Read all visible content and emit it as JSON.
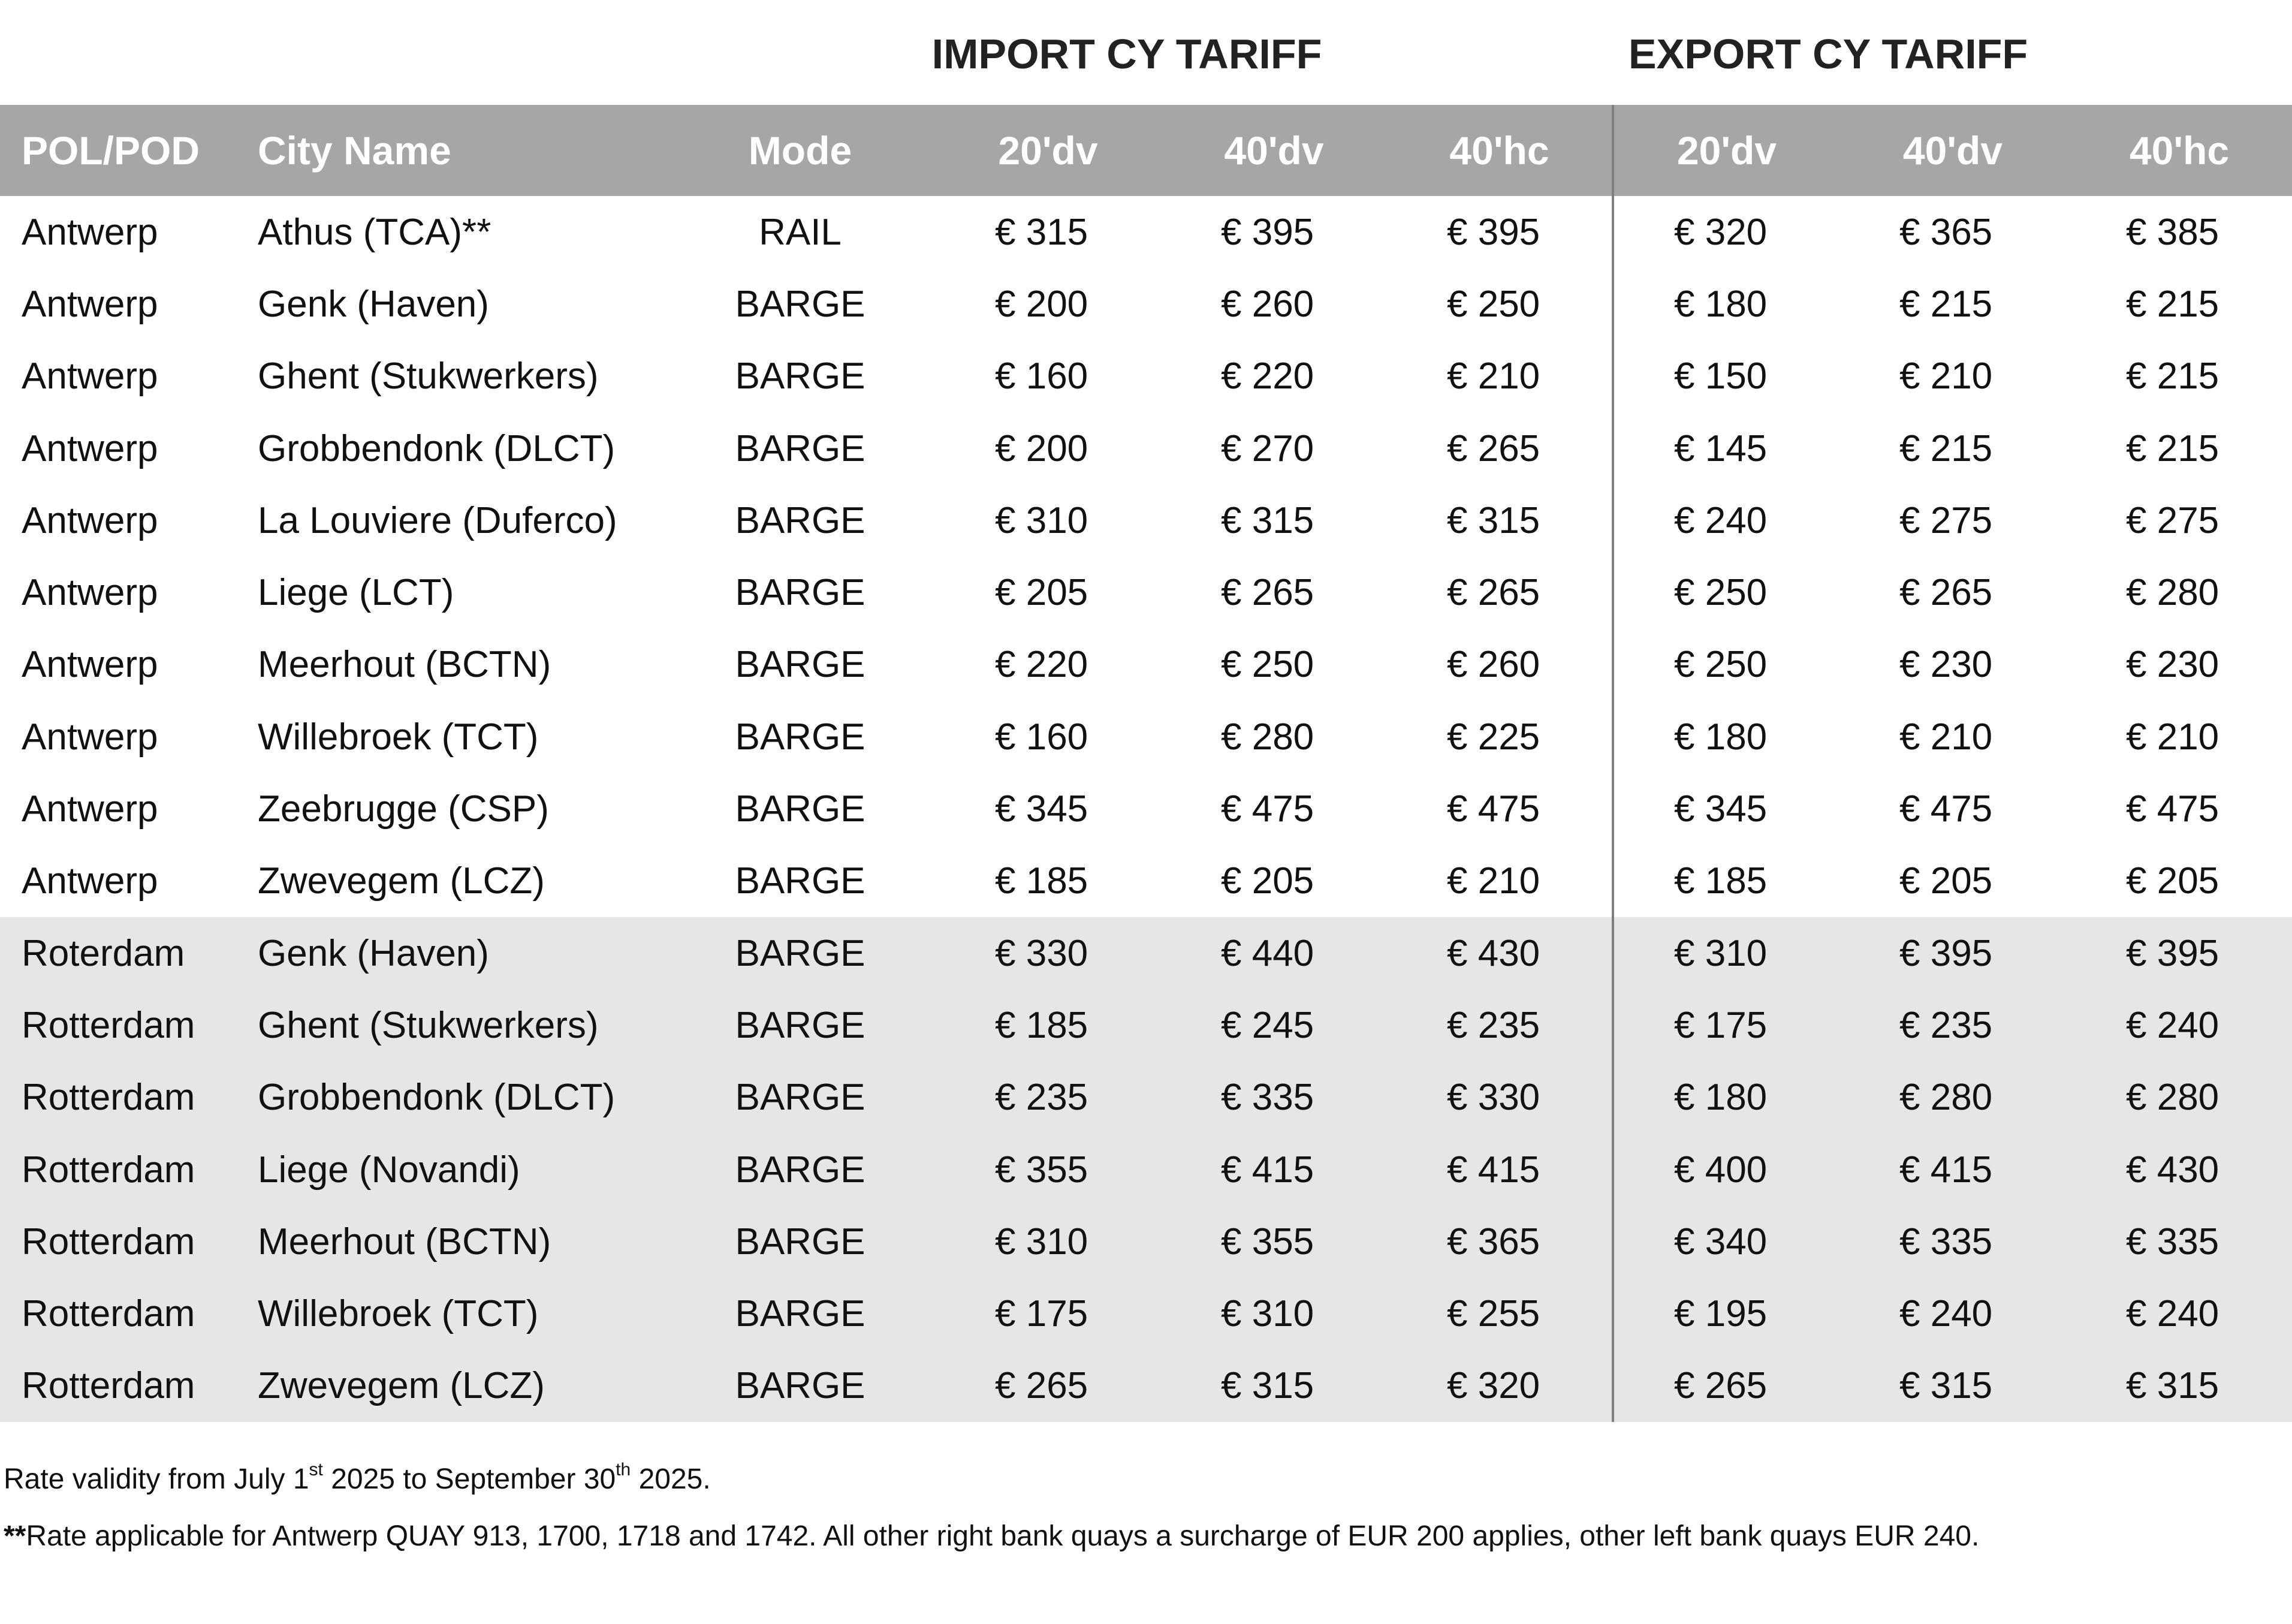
{
  "titles": {
    "import": "IMPORT CY TARIFF",
    "export": "EXPORT CY TARIFF"
  },
  "columns": {
    "pol": "POL/POD",
    "city": "City Name",
    "mode": "Mode",
    "import": [
      "20'dv",
      "40'dv",
      "40'hc"
    ],
    "export": [
      "20'dv",
      "40'dv",
      "40'hc"
    ]
  },
  "rows": [
    {
      "pol": "Antwerp",
      "city": "Athus (TCA)**",
      "mode": "RAIL",
      "imp": [
        "€ 315",
        "€ 395",
        "€ 395"
      ],
      "exp": [
        "€ 320",
        "€ 365",
        "€ 385"
      ]
    },
    {
      "pol": "Antwerp",
      "city": "Genk (Haven)",
      "mode": "BARGE",
      "imp": [
        "€ 200",
        "€ 260",
        "€ 250"
      ],
      "exp": [
        "€ 180",
        "€ 215",
        "€ 215"
      ]
    },
    {
      "pol": "Antwerp",
      "city": "Ghent (Stukwerkers)",
      "mode": "BARGE",
      "imp": [
        "€ 160",
        "€ 220",
        "€ 210"
      ],
      "exp": [
        "€ 150",
        "€ 210",
        "€ 215"
      ]
    },
    {
      "pol": "Antwerp",
      "city": "Grobbendonk (DLCT)",
      "mode": "BARGE",
      "imp": [
        "€ 200",
        "€ 270",
        "€ 265"
      ],
      "exp": [
        "€ 145",
        "€ 215",
        "€ 215"
      ]
    },
    {
      "pol": "Antwerp",
      "city": "La Louviere (Duferco)",
      "mode": "BARGE",
      "imp": [
        "€ 310",
        "€ 315",
        "€ 315"
      ],
      "exp": [
        "€ 240",
        "€ 275",
        "€ 275"
      ]
    },
    {
      "pol": "Antwerp",
      "city": "Liege (LCT)",
      "mode": "BARGE",
      "imp": [
        "€ 205",
        "€ 265",
        "€ 265"
      ],
      "exp": [
        "€ 250",
        "€ 265",
        "€ 280"
      ]
    },
    {
      "pol": "Antwerp",
      "city": "Meerhout (BCTN)",
      "mode": "BARGE",
      "imp": [
        "€ 220",
        "€ 250",
        "€ 260"
      ],
      "exp": [
        "€ 250",
        "€ 230",
        "€ 230"
      ]
    },
    {
      "pol": "Antwerp",
      "city": "Willebroek (TCT)",
      "mode": "BARGE",
      "imp": [
        "€ 160",
        "€ 280",
        "€ 225"
      ],
      "exp": [
        "€ 180",
        "€ 210",
        "€ 210"
      ]
    },
    {
      "pol": "Antwerp",
      "city": "Zeebrugge (CSP)",
      "mode": "BARGE",
      "imp": [
        "€ 345",
        "€ 475",
        "€ 475"
      ],
      "exp": [
        "€ 345",
        "€ 475",
        "€ 475"
      ]
    },
    {
      "pol": "Antwerp",
      "city": "Zwevegem (LCZ)",
      "mode": "BARGE",
      "imp": [
        "€ 185",
        "€ 205",
        "€ 210"
      ],
      "exp": [
        "€ 185",
        "€ 205",
        "€ 205"
      ]
    },
    {
      "pol": "Roterdam",
      "city": "Genk (Haven)",
      "mode": "BARGE",
      "imp": [
        "€ 330",
        "€ 440",
        "€ 430"
      ],
      "exp": [
        "€ 310",
        "€ 395",
        "€ 395"
      ]
    },
    {
      "pol": "Rotterdam",
      "city": "Ghent (Stukwerkers)",
      "mode": "BARGE",
      "imp": [
        "€ 185",
        "€ 245",
        "€ 235"
      ],
      "exp": [
        "€ 175",
        "€ 235",
        "€ 240"
      ]
    },
    {
      "pol": "Rotterdam",
      "city": "Grobbendonk (DLCT)",
      "mode": "BARGE",
      "imp": [
        "€ 235",
        "€ 335",
        "€ 330"
      ],
      "exp": [
        "€ 180",
        "€ 280",
        "€ 280"
      ]
    },
    {
      "pol": "Rotterdam",
      "city": "Liege (Novandi)",
      "mode": "BARGE",
      "imp": [
        "€ 355",
        "€ 415",
        "€ 415"
      ],
      "exp": [
        "€ 400",
        "€ 415",
        "€ 430"
      ]
    },
    {
      "pol": "Rotterdam",
      "city": "Meerhout (BCTN)",
      "mode": "BARGE",
      "imp": [
        "€ 310",
        "€ 355",
        "€ 365"
      ],
      "exp": [
        "€ 340",
        "€ 335",
        "€ 335"
      ]
    },
    {
      "pol": "Rotterdam",
      "city": "Willebroek (TCT)",
      "mode": "BARGE",
      "imp": [
        "€ 175",
        "€ 310",
        "€ 255"
      ],
      "exp": [
        "€ 195",
        "€ 240",
        "€ 240"
      ]
    },
    {
      "pol": "Rotterdam",
      "city": "Zwevegem (LCZ)",
      "mode": "BARGE",
      "imp": [
        "€ 265",
        "€ 315",
        "€ 320"
      ],
      "exp": [
        "€ 265",
        "€ 315",
        "€ 315"
      ]
    }
  ],
  "notes": {
    "validity": {
      "part1": "Rate validity from July 1",
      "sup1": "st",
      "part2": " 2025 to September 30",
      "sup2": "th",
      "part3": " 2025."
    },
    "quay": {
      "marker": "**",
      "text": "Rate applicable for Antwerp QUAY 913, 1700, 1718 and 1742. All other right bank quays a surcharge of EUR 200 applies, other left bank quays EUR 240."
    }
  },
  "colors": {
    "header_bg": "#a6a6a6",
    "header_text": "#ffffff",
    "rotterdam_band": "#e6e6e6",
    "separator": "#7f7f7f"
  }
}
